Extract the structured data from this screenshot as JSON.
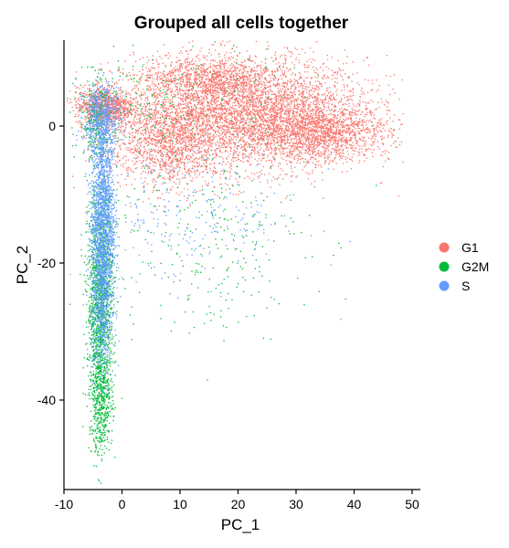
{
  "chart_data": {
    "type": "scatter",
    "title": "Grouped all cells together",
    "xlabel": "PC_1",
    "ylabel": "PC_2",
    "xlim": [
      -10,
      50
    ],
    "ylim": [
      -53,
      13
    ],
    "xticks": [
      -10,
      0,
      10,
      20,
      30,
      40,
      50
    ],
    "yticks": [
      -40,
      -20,
      0
    ],
    "grid": false,
    "legend_position": "right",
    "series": [
      {
        "name": "G1",
        "color": "#F8766D",
        "clusters": [
          {
            "cx": 22,
            "cy": 2,
            "sx": 10,
            "sy": 4,
            "n": 4200
          },
          {
            "cx": 34,
            "cy": -1,
            "sx": 6,
            "sy": 2,
            "n": 1300
          },
          {
            "cx": 8,
            "cy": -2,
            "sx": 5,
            "sy": 3.5,
            "n": 1400
          },
          {
            "cx": -3,
            "cy": 3,
            "sx": 2.5,
            "sy": 1.4,
            "n": 900
          },
          {
            "cx": 14,
            "cy": 7,
            "sx": 6,
            "sy": 1.6,
            "n": 800
          }
        ]
      },
      {
        "name": "G2M",
        "color": "#00BA38",
        "clusters": [
          {
            "cx": -3.8,
            "cy": -25,
            "sx": 1.1,
            "sy": 8,
            "n": 1500
          },
          {
            "cx": -3.7,
            "cy": -40,
            "sx": 1.0,
            "sy": 4,
            "n": 450
          },
          {
            "cx": 14,
            "cy": -17,
            "sx": 9,
            "sy": 7,
            "n": 260
          },
          {
            "cx": 6,
            "cy": 3,
            "sx": 10,
            "sy": 5,
            "n": 250
          },
          {
            "cx": -4.5,
            "cy": 1,
            "sx": 1.5,
            "sy": 3,
            "n": 260
          }
        ]
      },
      {
        "name": "S",
        "color": "#619CFF",
        "clusters": [
          {
            "cx": -3.4,
            "cy": -14,
            "sx": 1.0,
            "sy": 8,
            "n": 1900
          },
          {
            "cx": -3.6,
            "cy": -28,
            "sx": 0.9,
            "sy": 4,
            "n": 300
          },
          {
            "cx": 12,
            "cy": -13,
            "sx": 10,
            "sy": 5,
            "n": 260
          },
          {
            "cx": -3.5,
            "cy": 1,
            "sx": 1.6,
            "sy": 2.5,
            "n": 500
          }
        ]
      }
    ]
  }
}
